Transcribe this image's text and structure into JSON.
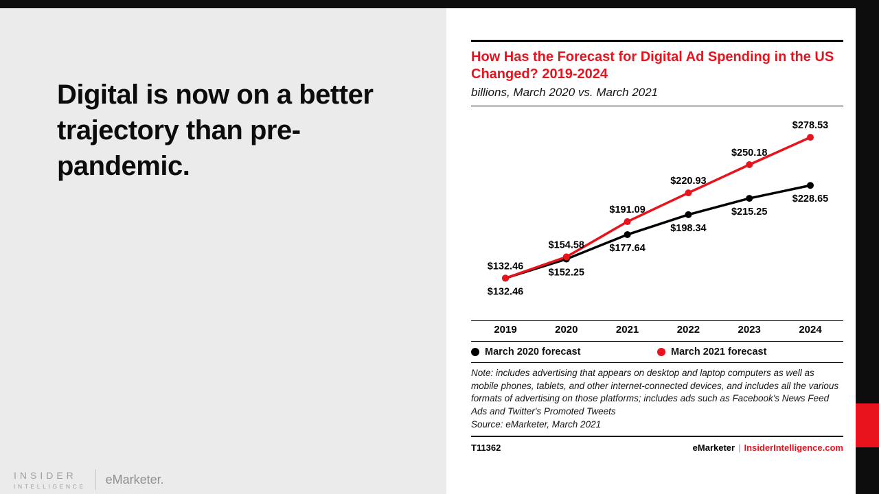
{
  "slide": {
    "headline": "Digital is now on a better trajectory than pre-pandemic.",
    "logo": {
      "insider": "INSIDER",
      "intelligence": "INTELLIGENCE",
      "emarketer": "eMarketer."
    }
  },
  "chart_card": {
    "title": "How Has the Forecast for Digital Ad Spending in the US Changed? 2019-2024",
    "subtitle": "billions, March 2020 vs. March 2021",
    "note": "Note: includes advertising that appears on desktop and laptop computers as well as mobile phones, tablets, and other internet-connected devices, and includes all the various formats of advertising on those platforms; includes ads such as Facebook's News Feed Ads and Twitter's Promoted Tweets",
    "source": "Source: eMarketer, March 2021",
    "chart_id": "T11362",
    "brand": "eMarketer",
    "brand_divider": "|",
    "brand_site": "InsiderIntelligence.com"
  },
  "chart_data": {
    "type": "line",
    "title": "How Has the Forecast for Digital Ad Spending in the US Changed? 2019-2024",
    "units": "billions, March 2020 vs. March 2021",
    "categories": [
      "2019",
      "2020",
      "2021",
      "2022",
      "2023",
      "2024"
    ],
    "series": [
      {
        "name": "March 2020 forecast",
        "color": "#000000",
        "values": [
          132.46,
          152.25,
          177.64,
          198.34,
          215.25,
          228.65
        ],
        "label_position": "below"
      },
      {
        "name": "March 2021 forecast",
        "color": "#e8131d",
        "values": [
          132.46,
          154.58,
          191.09,
          220.93,
          250.18,
          278.53
        ],
        "label_position": "above"
      }
    ],
    "value_prefix": "$",
    "ylim": [
      110,
      295
    ],
    "grid": false,
    "legend_position": "bottom"
  },
  "colors": {
    "accent_red": "#e8131d",
    "panel_gray": "#ebebeb",
    "frame_black": "#0d0d0d"
  }
}
